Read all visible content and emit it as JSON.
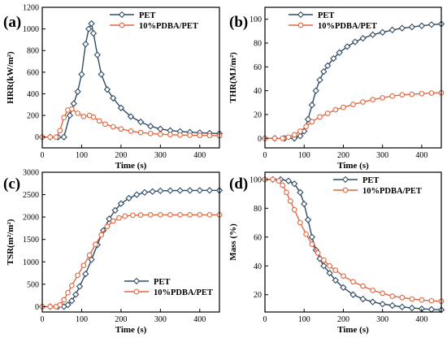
{
  "colors": {
    "series_a": "#2f4b63",
    "series_b": "#e2673e",
    "axes": "#000000"
  },
  "chart_data": [
    {
      "type": "line",
      "letter": "(a)",
      "xlabel": "Time (s)",
      "ylabel": "HRR(kW/m²)",
      "xlim": [
        0,
        450
      ],
      "ylim": [
        -100,
        1200
      ],
      "xticks": [
        0,
        100,
        200,
        300,
        400
      ],
      "yticks": [
        0,
        200,
        400,
        600,
        800,
        1000,
        1200
      ],
      "legend": "top-right",
      "series": [
        {
          "name": "PET",
          "color_key": "series_a",
          "marker": "diamond",
          "x": [
            0,
            20,
            40,
            55,
            70,
            80,
            90,
            100,
            110,
            118,
            125,
            130,
            140,
            150,
            165,
            180,
            200,
            225,
            250,
            275,
            300,
            325,
            350,
            375,
            400,
            425,
            450
          ],
          "y": [
            0,
            0,
            0,
            0,
            200,
            310,
            420,
            580,
            860,
            1000,
            1050,
            960,
            760,
            580,
            440,
            360,
            270,
            190,
            140,
            100,
            75,
            60,
            52,
            45,
            40,
            36,
            32
          ]
        },
        {
          "name": "10%PDBA/PET",
          "color_key": "series_b",
          "marker": "circle",
          "x": [
            0,
            20,
            35,
            45,
            55,
            65,
            75,
            90,
            105,
            120,
            130,
            145,
            160,
            180,
            200,
            225,
            250,
            275,
            300,
            325,
            350,
            375,
            400,
            425,
            450
          ],
          "y": [
            0,
            0,
            0,
            60,
            180,
            250,
            260,
            220,
            190,
            200,
            185,
            150,
            120,
            95,
            75,
            55,
            42,
            33,
            26,
            22,
            19,
            17,
            15,
            14,
            13
          ]
        }
      ]
    },
    {
      "type": "line",
      "letter": "(b)",
      "xlabel": "Time (s)",
      "ylabel": "THR(MJ/m²)",
      "xlim": [
        0,
        450
      ],
      "ylim": [
        -8,
        110
      ],
      "xticks": [
        0,
        100,
        200,
        300,
        400
      ],
      "yticks": [
        0,
        20,
        40,
        60,
        80,
        100
      ],
      "legend": "top-center",
      "series": [
        {
          "name": "PET",
          "color_key": "series_a",
          "marker": "diamond",
          "x": [
            0,
            25,
            50,
            75,
            90,
            100,
            110,
            120,
            130,
            140,
            150,
            160,
            175,
            190,
            210,
            230,
            250,
            275,
            300,
            325,
            350,
            375,
            400,
            425,
            450
          ],
          "y": [
            0,
            0,
            0,
            0,
            2,
            6,
            16,
            28,
            40,
            49,
            56,
            61,
            67,
            72,
            77,
            81,
            84,
            87,
            89,
            91,
            92.5,
            93.5,
            94.5,
            95.5,
            96
          ]
        },
        {
          "name": "10%PDBA/PET",
          "color_key": "series_b",
          "marker": "circle",
          "x": [
            0,
            25,
            45,
            60,
            75,
            90,
            105,
            120,
            140,
            160,
            180,
            200,
            225,
            250,
            275,
            300,
            325,
            350,
            375,
            400,
            425,
            450
          ],
          "y": [
            0,
            0,
            0,
            1,
            3,
            6,
            10,
            14,
            18,
            21,
            24,
            26,
            28.5,
            30.5,
            32.5,
            34,
            35.5,
            36.5,
            37,
            37.5,
            38,
            38.3
          ]
        }
      ]
    },
    {
      "type": "line",
      "letter": "(c)",
      "xlabel": "Time (s)",
      "ylabel": "TSR(m²/m²)",
      "xlim": [
        0,
        450
      ],
      "ylim": [
        -120,
        3000
      ],
      "xticks": [
        0,
        100,
        200,
        300,
        400
      ],
      "yticks": [
        0,
        500,
        1000,
        1500,
        2000,
        2500,
        3000
      ],
      "legend": "bottom-right",
      "series": [
        {
          "name": "PET",
          "color_key": "series_a",
          "marker": "diamond",
          "x": [
            0,
            20,
            40,
            55,
            65,
            75,
            85,
            95,
            110,
            125,
            140,
            155,
            170,
            185,
            200,
            220,
            240,
            260,
            280,
            300,
            325,
            350,
            375,
            400,
            425,
            450
          ],
          "y": [
            0,
            0,
            0,
            0,
            40,
            130,
            270,
            450,
            730,
            1050,
            1380,
            1700,
            1960,
            2150,
            2300,
            2420,
            2500,
            2550,
            2570,
            2585,
            2590,
            2592,
            2593,
            2594,
            2595,
            2595
          ]
        },
        {
          "name": "10%PDBA/PET",
          "color_key": "series_b",
          "marker": "circle",
          "x": [
            0,
            20,
            35,
            45,
            55,
            65,
            75,
            90,
            105,
            120,
            135,
            150,
            165,
            180,
            195,
            210,
            230,
            250,
            275,
            300,
            325,
            350,
            375,
            400,
            425,
            450
          ],
          "y": [
            0,
            0,
            0,
            40,
            150,
            310,
            470,
            700,
            920,
            1150,
            1390,
            1600,
            1790,
            1910,
            1980,
            2020,
            2040,
            2045,
            2050,
            2050,
            2050,
            2050,
            2050,
            2050,
            2050,
            2050
          ]
        }
      ]
    },
    {
      "type": "line",
      "letter": "(d)",
      "xlabel": "Time (s)",
      "ylabel": "Mass (%)",
      "xlim": [
        0,
        450
      ],
      "ylim": [
        8,
        105
      ],
      "xticks": [
        0,
        100,
        200,
        300,
        400
      ],
      "yticks": [
        20,
        40,
        60,
        80,
        100
      ],
      "legend": "top-center",
      "series": [
        {
          "name": "PET",
          "color_key": "series_a",
          "marker": "diamond",
          "x": [
            0,
            20,
            40,
            60,
            75,
            90,
            100,
            110,
            120,
            130,
            140,
            150,
            165,
            180,
            200,
            225,
            250,
            275,
            300,
            325,
            350,
            375,
            400,
            425,
            450
          ],
          "y": [
            100,
            100,
            100,
            99,
            97,
            91,
            83,
            72,
            60,
            51,
            45,
            40,
            35,
            30,
            25,
            20,
            17,
            15,
            13.5,
            12.5,
            11.5,
            10.8,
            10.2,
            9.8,
            9.5
          ]
        },
        {
          "name": "10%PDBA/PET",
          "color_key": "series_b",
          "marker": "circle",
          "x": [
            0,
            20,
            35,
            45,
            55,
            65,
            75,
            90,
            105,
            120,
            135,
            150,
            165,
            180,
            200,
            225,
            250,
            275,
            300,
            325,
            350,
            375,
            400,
            425,
            450
          ],
          "y": [
            100,
            100,
            99,
            96,
            91,
            85,
            79,
            70,
            62,
            55,
            49,
            44,
            40,
            37,
            33,
            29,
            26,
            23,
            21,
            19,
            18,
            17,
            16.3,
            15.8,
            15.5
          ]
        }
      ]
    }
  ]
}
